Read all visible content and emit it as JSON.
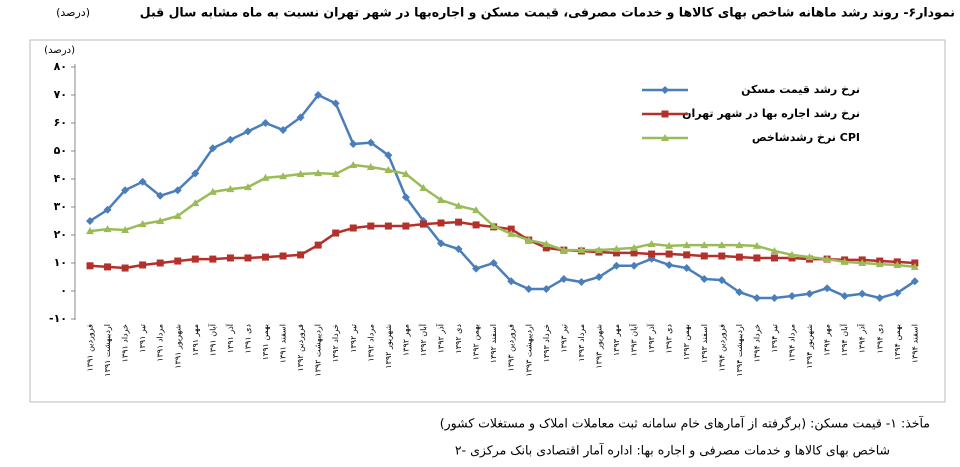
{
  "chart_data": {
    "type": "line",
    "title": "نمودار۶- روند رشد ماهانه شاخص بهای کالاها و خدمات مصرفی، قیمت مسکن و اجاره‌بها در شهر تهران نسبت به ماه مشابه سال قبل",
    "title_unit": "(درصد)",
    "y_label": "(درصد)",
    "categories": [
      "فروردین ۱۳۹۱",
      "اردیبهشت ۱۳۹۱",
      "خرداد ۱۳۹۱",
      "تیر ۱۳۹۱",
      "مرداد ۱۳۹۱",
      "شهریور ۱۳۹۱",
      "مهر ۱۳۹۱",
      "آبان ۱۳۹۱",
      "آذر ۱۳۹۱",
      "دی ۱۳۹۱",
      "بهمن ۱۳۹۱",
      "اسفند ۱۳۹۱",
      "فروردین ۱۳۹۲",
      "اردیبهشت ۱۳۹۲",
      "خرداد ۱۳۹۲",
      "تیر ۱۳۹۲",
      "مرداد ۱۳۹۲",
      "شهریور ۱۳۹۲",
      "مهر ۱۳۹۲",
      "آبان ۱۳۹۲",
      "آذر ۱۳۹۲",
      "دی ۱۳۹۲",
      "بهمن ۱۳۹۲",
      "اسفند ۱۳۹۲",
      "فروردین ۱۳۹۳",
      "اردیبهشت ۱۳۹۳",
      "خرداد ۱۳۹۳",
      "تیر ۱۳۹۳",
      "مرداد ۱۳۹۳",
      "شهریور ۱۳۹۳",
      "مهر ۱۳۹۳",
      "آبان ۱۳۹۳",
      "آذر ۱۳۹۳",
      "دی ۱۳۹۳",
      "بهمن ۱۳۹۳",
      "اسفند ۱۳۹۳",
      "فروردین ۱۳۹۴",
      "اردیبهشت ۱۳۹۴",
      "خرداد ۱۳۹۴",
      "تیر ۱۳۹۴",
      "مرداد ۱۳۹۴",
      "شهریور ۱۳۹۴",
      "مهر ۱۳۹۴",
      "آبان ۱۳۹۴",
      "آذر ۱۳۹۴",
      "دی ۱۳۹۴",
      "بهمن ۱۳۹۴",
      "اسفند ۱۳۹۴"
    ],
    "series": [
      {
        "name": "نرخ رشد قیمت مسکن",
        "color": "#4a7ebb",
        "marker": "diamond",
        "values": [
          25,
          29,
          36,
          39,
          34,
          36,
          42,
          51,
          54,
          57,
          60,
          57.5,
          62,
          70,
          67,
          52.5,
          53,
          48.5,
          33.5,
          25,
          17,
          15,
          8,
          10,
          3.5,
          0.7,
          0.7,
          4.3,
          3.2,
          5,
          9,
          9,
          11.5,
          9.3,
          8.2,
          4.3,
          3.9,
          -0.4,
          -2.5,
          -2.5,
          -1.8,
          -1,
          1,
          -1.8,
          -1,
          -2.5,
          -0.7,
          3.5
        ]
      },
      {
        "name": "نرخ رشد اجاره بها در شهر تهران",
        "color": "#b3302b",
        "marker": "square",
        "values": [
          9,
          8.6,
          8.2,
          9.3,
          10,
          10.7,
          11.4,
          11.4,
          11.8,
          11.8,
          12.1,
          12.5,
          12.9,
          16.4,
          20.7,
          22.5,
          23.2,
          23.2,
          23.2,
          23.9,
          24.3,
          24.6,
          23.6,
          22.9,
          22.1,
          18.2,
          15.4,
          14.6,
          14.3,
          13.9,
          13.6,
          13.6,
          13.2,
          13.2,
          12.9,
          12.5,
          12.5,
          12.1,
          11.8,
          11.8,
          11.8,
          11.4,
          11.4,
          11.1,
          11.1,
          10.7,
          10.4,
          10
        ]
      },
      {
        "name": "نرخ رشدشاخص CPI",
        "color": "#9bbb59",
        "marker": "triangle",
        "values": [
          21.4,
          22.1,
          21.8,
          23.9,
          25,
          26.8,
          31.4,
          35.4,
          36.4,
          37.1,
          40.4,
          41,
          41.8,
          42.1,
          41.8,
          45,
          44.3,
          43.2,
          41.8,
          36.8,
          32.5,
          30.4,
          28.9,
          23.2,
          20.4,
          18.2,
          16.8,
          14.6,
          14.6,
          14.6,
          15,
          15.4,
          16.8,
          16.1,
          16.4,
          16.4,
          16.4,
          16.4,
          16.1,
          14.3,
          12.9,
          12.1,
          11.4,
          10.4,
          10,
          9.6,
          9.3,
          8.6
        ]
      }
    ],
    "ylim": [
      -10,
      80
    ],
    "yticks": [
      {
        "value": -10,
        "label": "-۱۰"
      },
      {
        "value": 0,
        "label": "۰"
      },
      {
        "value": 10,
        "label": "۱۰"
      },
      {
        "value": 20,
        "label": "۲۰"
      },
      {
        "value": 30,
        "label": "۳۰"
      },
      {
        "value": 40,
        "label": "۴۰"
      },
      {
        "value": 50,
        "label": "۵۰"
      },
      {
        "value": 60,
        "label": "۶۰"
      },
      {
        "value": 70,
        "label": "۷۰"
      },
      {
        "value": 80,
        "label": "۸۰"
      }
    ],
    "grid": false,
    "notes": [
      "مآخذ: ۱- قیمت مسکن: (برگرفته از آمارهای خام سامانه ثبت معاملات املاک و مستغلات کشور)",
      "۲- شاخص بهای کالاها و خدمات مصرفی و اجاره بها: اداره آمار اقتصادی بانک مرکزی"
    ]
  }
}
